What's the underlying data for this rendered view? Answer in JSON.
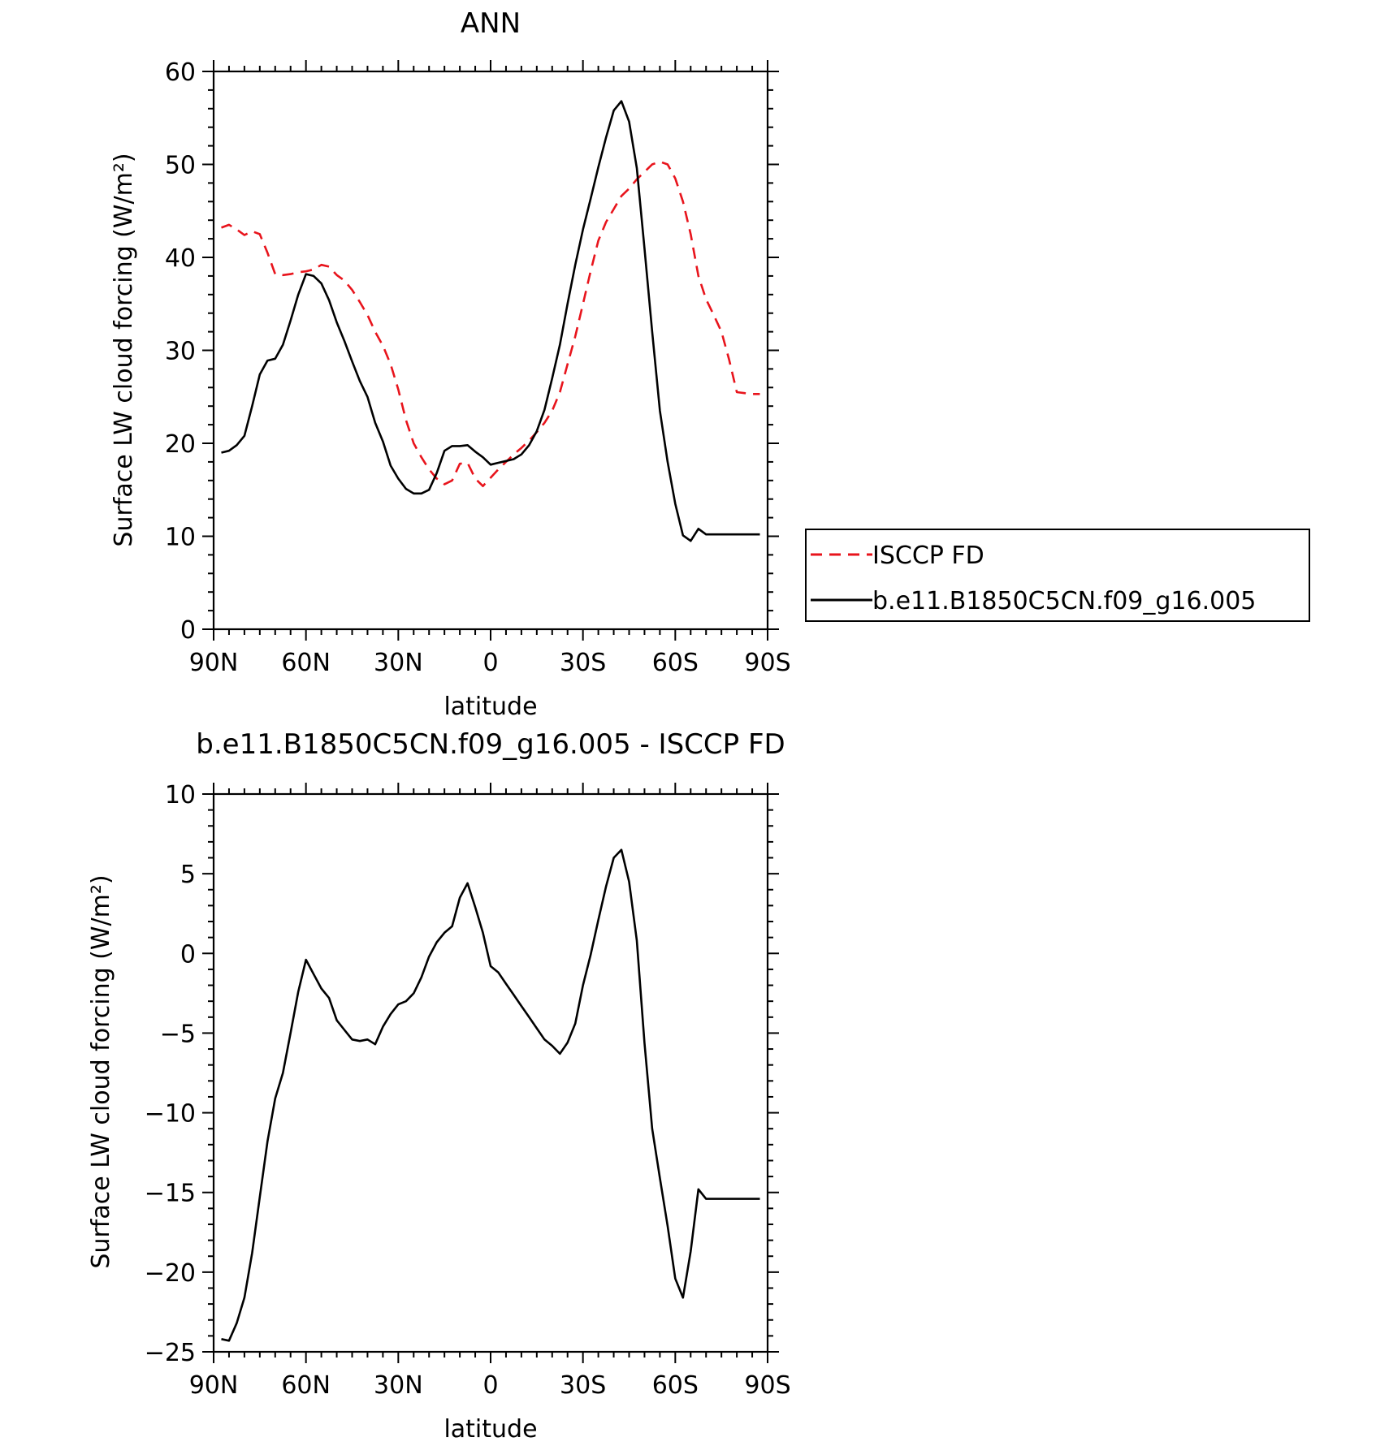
{
  "chart_data": [
    {
      "type": "line",
      "title": "ANN",
      "xlabel": "latitude",
      "ylabel": "Surface LW cloud forcing (W/m²)",
      "xlim": [
        90,
        -90
      ],
      "ylim": [
        0,
        60
      ],
      "x_ticks": [
        90,
        60,
        30,
        0,
        -30,
        -60,
        -90
      ],
      "x_tick_labels": [
        "90N",
        "60N",
        "30N",
        "0",
        "30S",
        "60S",
        "90S"
      ],
      "y_ticks": [
        0,
        10,
        20,
        30,
        40,
        50,
        60
      ],
      "y_tick_labels": [
        "0",
        "10",
        "20",
        "30",
        "40",
        "50",
        "60"
      ],
      "grid": false,
      "legend_position": "right, outside plot",
      "series": [
        {
          "name": "ISCCP FD",
          "color": "#e8141c",
          "dash": "dashed",
          "x": [
            87.5,
            85,
            82.5,
            80,
            77.5,
            75,
            72.5,
            70,
            67.5,
            65,
            62.5,
            60,
            57.5,
            55,
            52.5,
            50,
            47.5,
            45,
            42.5,
            40,
            37.5,
            35,
            32.5,
            30,
            27.5,
            25,
            22.5,
            20,
            17.5,
            15,
            12.5,
            10,
            7.5,
            5,
            2.5,
            0,
            -2.5,
            -5,
            -7.5,
            -10,
            -12.5,
            -15,
            -17.5,
            -20,
            -22.5,
            -25,
            -27.5,
            -30,
            -32.5,
            -35,
            -37.5,
            -40,
            -42.5,
            -45,
            -47.5,
            -50,
            -52.5,
            -55,
            -57.5,
            -60,
            -62.5,
            -65,
            -67.5,
            -70,
            -72.5,
            -75,
            -77.5,
            -80,
            -82.5,
            -85,
            -87.5
          ],
          "y": [
            43.2,
            43.5,
            43.0,
            42.4,
            42.8,
            42.5,
            40.5,
            38.2,
            38.1,
            38.2,
            38.4,
            38.5,
            38.7,
            39.2,
            39.0,
            38.1,
            37.5,
            36.5,
            35.2,
            33.8,
            32.0,
            30.5,
            28.5,
            25.8,
            22.5,
            20.0,
            18.5,
            17.2,
            16.2,
            15.6,
            16.0,
            17.8,
            17.9,
            16.2,
            15.4,
            16.3,
            17.2,
            18.0,
            18.8,
            19.5,
            20.3,
            21.2,
            22.2,
            23.5,
            25.5,
            28.5,
            31.5,
            35.0,
            38.5,
            41.8,
            43.8,
            45.2,
            46.6,
            47.4,
            48.4,
            49.2,
            50.0,
            50.3,
            50.0,
            48.5,
            46.0,
            42.5,
            38.0,
            35.5,
            33.8,
            32.0,
            29.0,
            25.5,
            25.4,
            25.3,
            25.3
          ]
        },
        {
          "name": "b.e11.B1850C5CN.f09_g16.005",
          "color": "#000000",
          "dash": "solid",
          "x": [
            87.5,
            85,
            82.5,
            80,
            77.5,
            75,
            72.5,
            70,
            67.5,
            65,
            62.5,
            60,
            57.5,
            55,
            52.5,
            50,
            47.5,
            45,
            42.5,
            40,
            37.5,
            35,
            32.5,
            30,
            27.5,
            25,
            22.5,
            20,
            17.5,
            15,
            12.5,
            10,
            7.5,
            5,
            2.5,
            0,
            -2.5,
            -5,
            -7.5,
            -10,
            -12.5,
            -15,
            -17.5,
            -20,
            -22.5,
            -25,
            -27.5,
            -30,
            -32.5,
            -35,
            -37.5,
            -40,
            -42.5,
            -45,
            -47.5,
            -50,
            -52.5,
            -55,
            -57.5,
            -60,
            -62.5,
            -65,
            -67.5,
            -70,
            -72.5,
            -75,
            -77.5,
            -80,
            -82.5,
            -85,
            -87.5
          ],
          "y": [
            19.0,
            19.2,
            19.8,
            20.8,
            24.0,
            27.4,
            28.9,
            29.1,
            30.6,
            33.2,
            36.0,
            38.2,
            38.0,
            37.2,
            35.4,
            33.0,
            31.0,
            28.8,
            26.7,
            25.0,
            22.2,
            20.2,
            17.6,
            16.2,
            15.1,
            14.6,
            14.6,
            15.0,
            16.8,
            19.2,
            19.7,
            19.7,
            19.8,
            19.1,
            18.5,
            17.7,
            17.9,
            18.1,
            18.3,
            18.8,
            19.8,
            21.3,
            23.6,
            27.0,
            30.6,
            35.0,
            39.2,
            43.0,
            46.3,
            49.7,
            52.9,
            55.8,
            56.8,
            54.6,
            49.6,
            41.0,
            32.0,
            23.5,
            18.0,
            13.5,
            10.1,
            9.5,
            10.8,
            10.2,
            10.2,
            10.2,
            10.2,
            10.2,
            10.2,
            10.2,
            10.2
          ]
        }
      ]
    },
    {
      "type": "line",
      "title": "b.e11.B1850C5CN.f09_g16.005 - ISCCP FD",
      "xlabel": "latitude",
      "ylabel": "Surface LW cloud forcing (W/m²)",
      "xlim": [
        90,
        -90
      ],
      "ylim": [
        -25,
        10
      ],
      "x_ticks": [
        90,
        60,
        30,
        0,
        -30,
        -60,
        -90
      ],
      "x_tick_labels": [
        "90N",
        "60N",
        "30N",
        "0",
        "30S",
        "60S",
        "90S"
      ],
      "y_ticks": [
        -25,
        -20,
        -15,
        -10,
        -5,
        0,
        5,
        10
      ],
      "y_tick_labels": [
        "−25",
        "−20",
        "−15",
        "−10",
        "−5",
        "0",
        "5",
        "10"
      ],
      "grid": false,
      "series": [
        {
          "color": "#000000",
          "dash": "solid",
          "x": [
            87.5,
            85,
            82.5,
            80,
            77.5,
            75,
            72.5,
            70,
            67.5,
            65,
            62.5,
            60,
            57.5,
            55,
            52.5,
            50,
            47.5,
            45,
            42.5,
            40,
            37.5,
            35,
            32.5,
            30,
            27.5,
            25,
            22.5,
            20,
            17.5,
            15,
            12.5,
            10,
            7.5,
            5,
            2.5,
            0,
            -2.5,
            -5,
            -7.5,
            -10,
            -12.5,
            -15,
            -17.5,
            -20,
            -22.5,
            -25,
            -27.5,
            -30,
            -32.5,
            -35,
            -37.5,
            -40,
            -42.5,
            -45,
            -47.5,
            -50,
            -52.5,
            -55,
            -57.5,
            -60,
            -62.5,
            -65,
            -67.5,
            -70,
            -72.5,
            -75,
            -77.5,
            -80,
            -82.5,
            -85,
            -87.5
          ],
          "y": [
            -24.2,
            -24.3,
            -23.2,
            -21.6,
            -18.8,
            -15.3,
            -11.8,
            -9.1,
            -7.5,
            -5.0,
            -2.4,
            -0.4,
            -1.3,
            -2.2,
            -2.8,
            -4.2,
            -4.8,
            -5.4,
            -5.5,
            -5.4,
            -5.7,
            -4.6,
            -3.8,
            -3.2,
            -3.0,
            -2.5,
            -1.5,
            -0.2,
            0.7,
            1.3,
            1.7,
            3.5,
            4.4,
            2.9,
            1.3,
            -0.8,
            -1.2,
            -1.9,
            -2.6,
            -3.3,
            -4.0,
            -4.7,
            -5.4,
            -5.8,
            -6.3,
            -5.6,
            -4.4,
            -2.0,
            -0.1,
            2.1,
            4.2,
            6.0,
            6.5,
            4.5,
            0.8,
            -5.6,
            -11.0,
            -14.1,
            -17.1,
            -20.4,
            -21.6,
            -18.7,
            -14.8,
            -15.4,
            -15.4,
            -15.4,
            -15.4,
            -15.4,
            -15.4,
            -15.4,
            -15.4
          ]
        }
      ]
    }
  ]
}
